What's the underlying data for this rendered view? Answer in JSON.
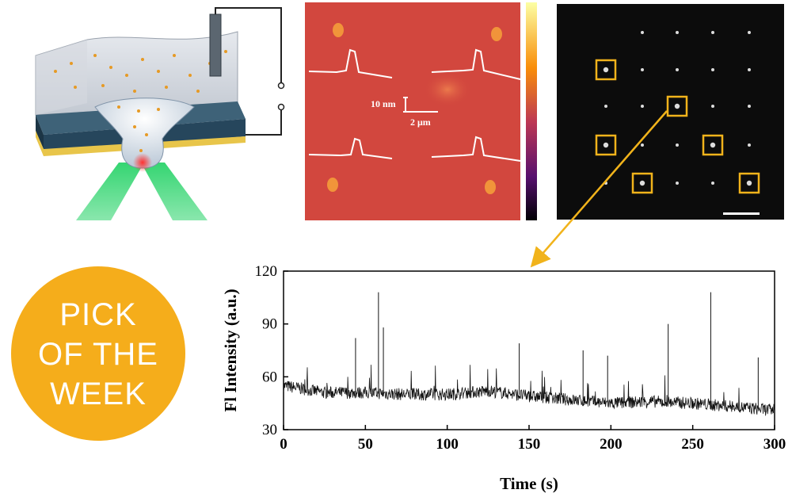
{
  "badge": {
    "line1": "PICK",
    "line2": "OF THE",
    "line3": "WEEK",
    "color": "#f5ad1b"
  },
  "afm": {
    "height_scale_label": "10 nm",
    "length_scale_label": "2 μm"
  },
  "colors": {
    "highlight": "#f1b31b",
    "afm_background": "#d2473e",
    "laser": "#2ad36a"
  },
  "chart_data": {
    "type": "line",
    "xlabel": "Time (s)",
    "ylabel": "Fl Intensity (a.u.)",
    "xlim": [
      0,
      300
    ],
    "ylim": [
      30,
      120
    ],
    "xticks": [
      "0",
      "50",
      "100",
      "150",
      "200",
      "250",
      "300"
    ],
    "yticks": [
      "30",
      "60",
      "90",
      "120"
    ],
    "baseline": [
      [
        0,
        55
      ],
      [
        25,
        51
      ],
      [
        50,
        51
      ],
      [
        75,
        50
      ],
      [
        100,
        50
      ],
      [
        125,
        52
      ],
      [
        150,
        49
      ],
      [
        175,
        47
      ],
      [
        200,
        45
      ],
      [
        225,
        46
      ],
      [
        250,
        45
      ],
      [
        275,
        43
      ],
      [
        300,
        41
      ]
    ],
    "spikes": [
      [
        44,
        82
      ],
      [
        58,
        108
      ],
      [
        61,
        88
      ],
      [
        144,
        79
      ],
      [
        183,
        75
      ],
      [
        198,
        72
      ],
      [
        235,
        90
      ],
      [
        261,
        108
      ],
      [
        290,
        71
      ]
    ]
  }
}
